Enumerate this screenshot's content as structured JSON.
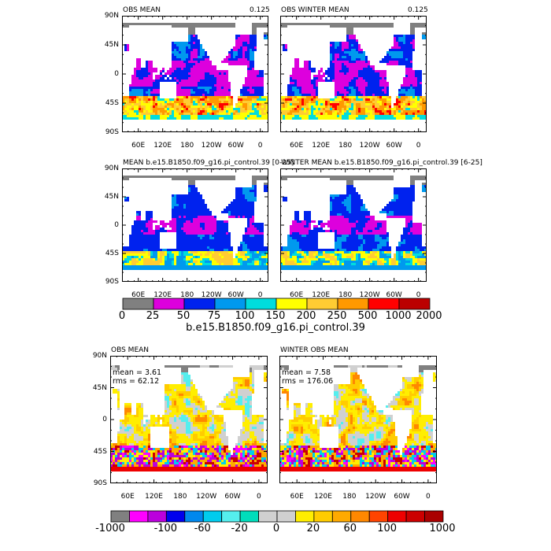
{
  "panels": [
    {
      "title_left": "OBS MEAN",
      "title_right": "0.125",
      "stats": []
    },
    {
      "title_left": "OBS WINTER MEAN",
      "title_right": "0.125",
      "stats": []
    },
    {
      "title_left": "MEAN  b.e15.B1850.f09_g16.pi_control.39  [0-25]",
      "title_right": "",
      "stats": []
    },
    {
      "title_left": "WINTER MEAN  b.e15.B1850.f09_g16.pi_control.39  [6-25]",
      "title_right": "",
      "stats": []
    },
    {
      "title_left": "OBS MEAN",
      "title_right": "",
      "stats": [
        "mean = 3.61",
        "rms = 62.12"
      ]
    },
    {
      "title_left": "WINTER OBS MEAN",
      "title_right": "",
      "stats": [
        "mean = 7.58",
        "rms = 176.06"
      ]
    }
  ],
  "axes": {
    "lat_labels": [
      "90N",
      "45N",
      "0",
      "45S",
      "90S"
    ],
    "lon_labels": [
      "60E",
      "120E",
      "180",
      "120W",
      "60W",
      "0"
    ]
  },
  "colorbar1": {
    "labels": [
      "0",
      "25",
      "50",
      "75",
      "100",
      "150",
      "200",
      "250",
      "500",
      "1000",
      "2000"
    ],
    "colors": [
      "#808080",
      "#dd00dd",
      "#0022ee",
      "#0099ee",
      "#00dddd",
      "#ffff00",
      "#ffcc33",
      "#ff9900",
      "#ff0000",
      "#bb0000"
    ],
    "caption": "b.e15.B1850.f09_g16.pi_control.39"
  },
  "colorbar2": {
    "labels": [
      "-1000",
      "-100",
      "-60",
      "-20",
      "0",
      "20",
      "60",
      "100",
      "1000"
    ],
    "colors": [
      "#808080",
      "#ff00ff",
      "#bb00dd",
      "#0000ee",
      "#0088ee",
      "#00ccee",
      "#55eeee",
      "#00ddbb",
      "#d0d0d0",
      "#d0d0d0",
      "#ffee00",
      "#ffcc00",
      "#ffaa00",
      "#ff8800",
      "#ff4400",
      "#ee0000",
      "#cc0000",
      "#aa0000"
    ]
  }
}
